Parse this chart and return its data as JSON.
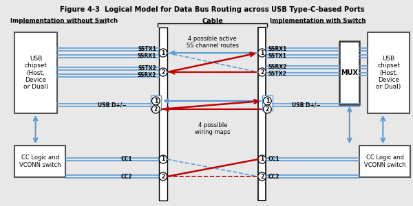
{
  "title": "Figure 4-3  Logical Model for Data Bus Routing across USB Type-C-based Ports",
  "bg_color": "#e8e8e8",
  "left_section_label": "Implementation without Switch",
  "right_section_label": "Implementation with Switch",
  "cable_label": "Cable",
  "cable_text1": "4 possible active\nSS channel routes",
  "cable_text2": "4 possible\nwiring maps",
  "left_box1_text": "USB\nchipset\n(Host,\nDevice\nor Dual)",
  "left_box2_text": "CC Logic and\nVCONN switch",
  "right_box1_text": "USB\nchipset\n(Host,\nDevice\nor Dual)",
  "right_box2_text": "CC Logic and\nVCONN switch",
  "mux_text": "MUX",
  "left_labels_ss": [
    "SSTX1",
    "SSRX1",
    "SSTX2",
    "SSRX2"
  ],
  "right_labels_ss": [
    "SSRX1",
    "SSTX1",
    "SSRX2",
    "SSTX2"
  ],
  "usb_dp_label": "USB D+/−",
  "cc1_label": "CC1",
  "cc2_label": "CC2",
  "blue": "#5b9bd5",
  "red": "#c00000",
  "dark": "#333333"
}
